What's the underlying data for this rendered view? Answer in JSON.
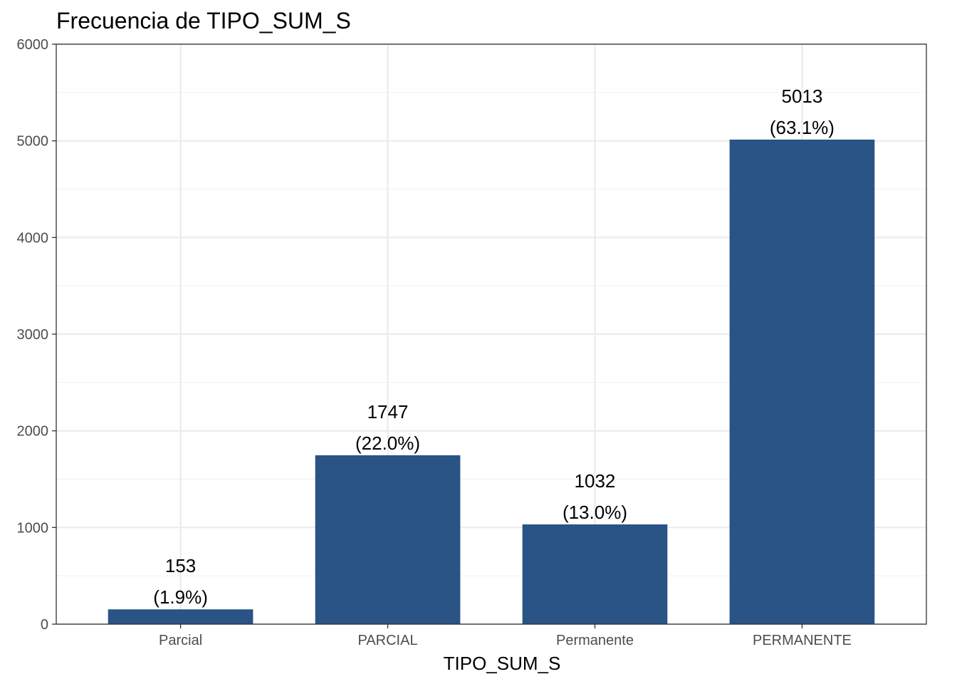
{
  "chart_data": {
    "type": "bar",
    "title": "Frecuencia de TIPO_SUM_S",
    "xlabel": "TIPO_SUM_S",
    "ylabel": "",
    "categories": [
      "Parcial",
      "PARCIAL",
      "Permanente",
      "PERMANENTE"
    ],
    "values": [
      153,
      1747,
      1032,
      5013
    ],
    "value_labels": [
      "153",
      "1747",
      "1032",
      "5013"
    ],
    "percent_labels": [
      "(1.9%)",
      "(22.0%)",
      "(13.0%)",
      "(63.1%)"
    ],
    "ylim": [
      0,
      6000
    ],
    "yticks": [
      0,
      1000,
      2000,
      3000,
      4000,
      5000,
      6000
    ],
    "ytick_labels": [
      "0",
      "1000",
      "2000",
      "3000",
      "4000",
      "5000",
      "6000"
    ],
    "grid": true,
    "legend": "none",
    "colors": {
      "bar": "#2A5386",
      "grid_major": "#EBEBEB",
      "grid_minor": "#F2F2F2",
      "panel_border": "#333333",
      "tick_text": "#4D4D4D"
    }
  }
}
